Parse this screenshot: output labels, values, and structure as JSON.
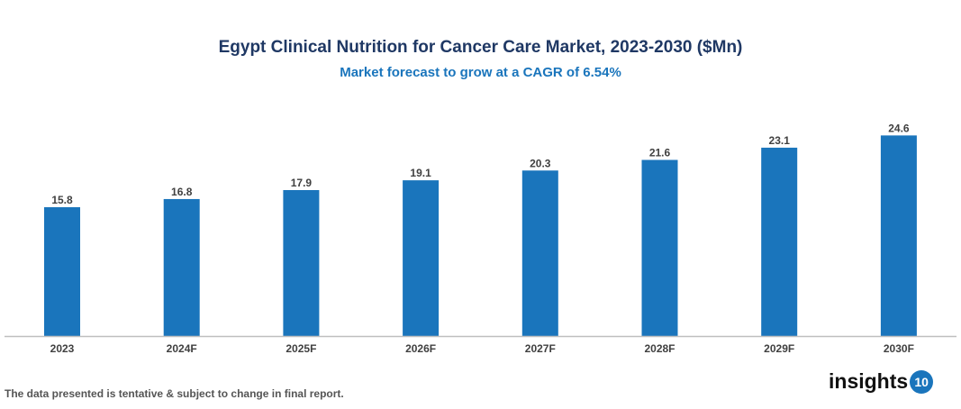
{
  "chart_data": {
    "type": "bar",
    "title": "Egypt Clinical Nutrition for Cancer Care Market, 2023-2030 ($Mn)",
    "subtitle": "Market forecast to grow at a CAGR of 6.54%",
    "categories": [
      "2023",
      "2024F",
      "2025F",
      "2026F",
      "2027F",
      "2028F",
      "2029F",
      "2030F"
    ],
    "values": [
      15.8,
      16.8,
      17.9,
      19.1,
      20.3,
      21.6,
      23.1,
      24.6
    ],
    "xlabel": "",
    "ylabel": "",
    "ylim": [
      0,
      27
    ],
    "grid": false,
    "bar_color": "#1a75bc",
    "data_labels": true
  },
  "footer": {
    "note": "The data presented is tentative & subject to change in final report.",
    "logo_text": "insights",
    "logo_number": "10"
  }
}
